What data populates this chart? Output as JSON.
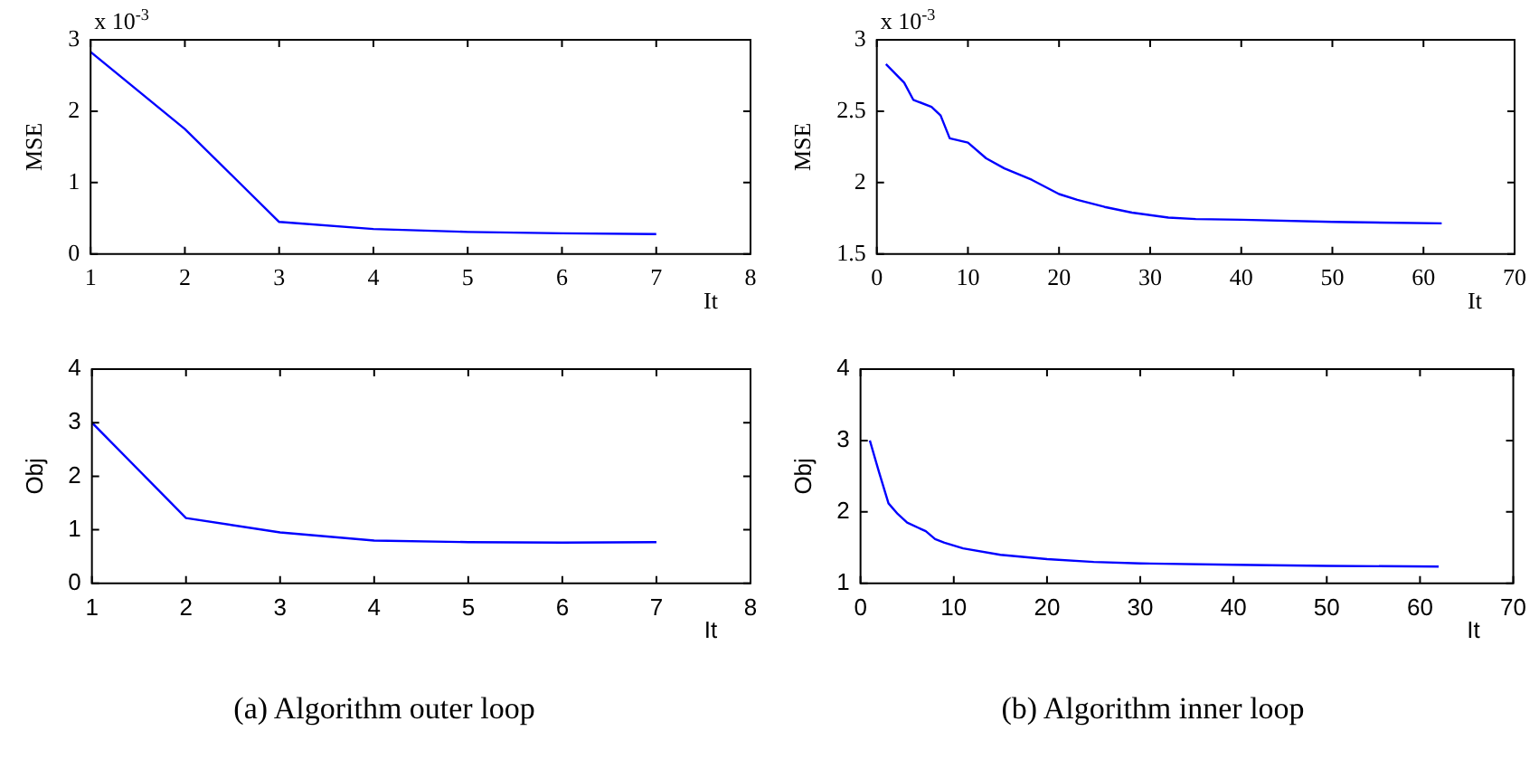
{
  "chart_data": [
    {
      "type": "line",
      "ylabel": "MSE",
      "xlabel": "It",
      "annotations": [
        "x 10$^{-3}$"
      ],
      "xlim": [
        1,
        8
      ],
      "xticks": [
        1,
        2,
        3,
        4,
        5,
        6,
        7,
        8
      ],
      "ylim": [
        0,
        3
      ],
      "yticks": [
        0,
        1,
        2,
        3
      ],
      "grid": false,
      "legend": false,
      "marker": "none",
      "line_style": "solid",
      "series": [
        {
          "color": "#0000ff",
          "x": [
            1,
            2,
            3,
            4,
            5,
            6,
            7
          ],
          "values": [
            2.83,
            1.75,
            0.45,
            0.35,
            0.31,
            0.29,
            0.28
          ]
        }
      ]
    },
    {
      "type": "line",
      "ylabel": "MSE",
      "xlabel": "It",
      "annotations": [
        "x 10$^{-3}$"
      ],
      "xlim": [
        0,
        70
      ],
      "xticks": [
        0,
        10,
        20,
        30,
        40,
        50,
        60,
        70
      ],
      "ylim": [
        1.5,
        3
      ],
      "yticks": [
        1.5,
        2,
        2.5,
        3
      ],
      "grid": false,
      "legend": false,
      "marker": "none",
      "line_style": "solid",
      "series": [
        {
          "color": "#0000ff",
          "x": [
            1,
            3,
            4,
            6,
            7,
            8,
            10,
            12,
            14,
            17,
            20,
            22,
            25,
            28,
            32,
            35,
            40,
            50,
            62
          ],
          "values": [
            2.83,
            2.7,
            2.58,
            2.53,
            2.47,
            2.31,
            2.28,
            2.17,
            2.1,
            2.02,
            1.92,
            1.88,
            1.83,
            1.79,
            1.755,
            1.745,
            1.74,
            1.725,
            1.715
          ]
        }
      ]
    },
    {
      "type": "line",
      "ylabel": "Obj",
      "xlabel": "It",
      "annotations": [
        "(a)  Algorithm outer loop"
      ],
      "xlim": [
        1,
        8
      ],
      "xticks": [
        1,
        2,
        3,
        4,
        5,
        6,
        7,
        8
      ],
      "ylim": [
        0,
        4
      ],
      "yticks": [
        0,
        1,
        2,
        3,
        4
      ],
      "grid": false,
      "legend": false,
      "marker": "none",
      "line_style": "solid",
      "series": [
        {
          "color": "#0000ff",
          "x": [
            1,
            2,
            3,
            4,
            5,
            6,
            7
          ],
          "values": [
            3.0,
            1.22,
            0.95,
            0.8,
            0.77,
            0.76,
            0.77
          ]
        }
      ]
    },
    {
      "type": "line",
      "ylabel": "Obj",
      "xlabel": "It",
      "annotations": [
        "(b)  Algorithm inner loop"
      ],
      "xlim": [
        0,
        70
      ],
      "xticks": [
        0,
        10,
        20,
        30,
        40,
        50,
        60,
        70
      ],
      "ylim": [
        1,
        4
      ],
      "yticks": [
        1,
        2,
        3,
        4
      ],
      "grid": false,
      "legend": false,
      "marker": "none",
      "line_style": "solid",
      "series": [
        {
          "color": "#0000ff",
          "x": [
            1,
            2,
            3,
            4,
            5,
            7,
            8,
            9,
            11,
            15,
            20,
            25,
            30,
            40,
            50,
            62
          ],
          "values": [
            3.0,
            2.55,
            2.12,
            1.97,
            1.85,
            1.73,
            1.62,
            1.57,
            1.49,
            1.4,
            1.34,
            1.3,
            1.28,
            1.26,
            1.245,
            1.235
          ]
        }
      ]
    }
  ]
}
